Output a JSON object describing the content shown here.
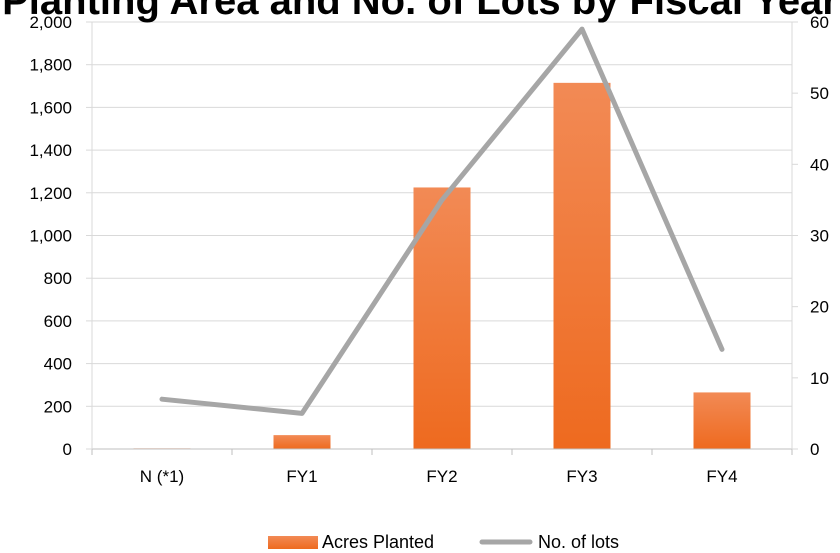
{
  "chart_data": {
    "type": "bar",
    "title": "Planting Area and No. of Lots by Fiscal Year",
    "categories": [
      "N (*1)",
      "FY1",
      "FY2",
      "FY3",
      "FY4"
    ],
    "series": [
      {
        "name": "Acres Planted",
        "type": "bar",
        "axis": "left",
        "color": "#F07A2B",
        "values": [
          3,
          65,
          1225,
          1715,
          265
        ]
      },
      {
        "name": "No. of lots",
        "type": "line",
        "axis": "right",
        "color": "#A6A6A6",
        "values": [
          7,
          5,
          35,
          59,
          14
        ]
      }
    ],
    "y_left": {
      "min": 0,
      "max": 2000,
      "step": 200,
      "tick_labels": [
        "0",
        "200",
        "400",
        "600",
        "800",
        "1,000",
        "1,200",
        "1,400",
        "1,600",
        "1,800",
        "2,000"
      ]
    },
    "y_right": {
      "min": 0,
      "max": 60,
      "step": 10,
      "tick_labels": [
        "0",
        "10",
        "20",
        "30",
        "40",
        "50",
        "60"
      ]
    },
    "grid": true,
    "legend": "bottom"
  }
}
